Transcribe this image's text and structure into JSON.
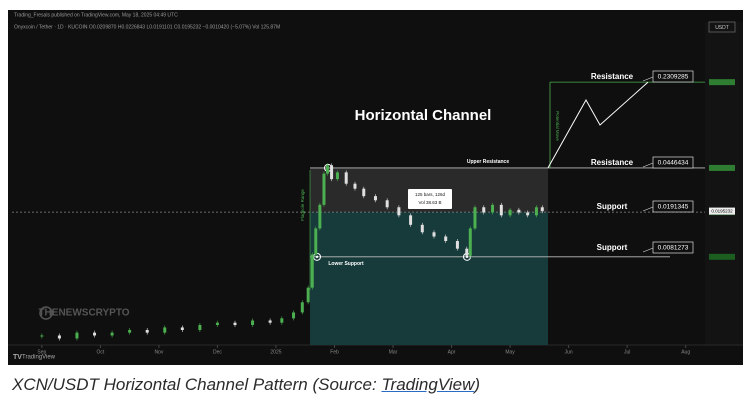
{
  "chart_data": {
    "type": "candlestick",
    "title": "Horizontal Channel",
    "publisher": "Trading_Fresals published on TradingView.com, May 18, 2025 04:49 UTC",
    "symbol_line": "Onyxcoin / Tether · 1D · KUCOIN  O0.0209870  H0.0226843  L0.0191101  C0.0195232  −0.0010420 (−5.07%)  Vol 125.87M",
    "currency": "USDT",
    "current_price": "0.0195232",
    "watermark": "THENEWSCRYPTO",
    "footer": "TradingView",
    "annotations": {
      "upper": "Upper Resistance",
      "lower": "Lower Support",
      "range_bars": "125 bars, 126d",
      "range_vol": "Vol 38.63 B",
      "flagpole": "Flagpole Range",
      "move": "Potential Move"
    },
    "levels": [
      {
        "label": "Resistance",
        "value": 0.2309285
      },
      {
        "label": "Resistance",
        "value": 0.0446434
      },
      {
        "label": "Support",
        "value": 0.0191345
      },
      {
        "label": "Support",
        "value": 0.0081273
      }
    ],
    "x": [
      0.0,
      0.3,
      0.6,
      0.9,
      1.2,
      1.5,
      1.8,
      2.1,
      2.4,
      2.7,
      3.0,
      3.3,
      3.6,
      3.9,
      4.1,
      4.3,
      4.45,
      4.55,
      4.62,
      4.68,
      4.75,
      4.82,
      4.88,
      4.95,
      5.05,
      5.2,
      5.35,
      5.5,
      5.7,
      5.9,
      6.1,
      6.3,
      6.5,
      6.7,
      6.9,
      7.1,
      7.26,
      7.32,
      7.4,
      7.55,
      7.7,
      7.85,
      8.0,
      8.15,
      8.3,
      8.45,
      8.55
    ],
    "values": [
      0.0018,
      0.0017,
      0.0019,
      0.0018,
      0.0019,
      0.002,
      0.0019,
      0.0021,
      0.002,
      0.0022,
      0.0023,
      0.0022,
      0.0024,
      0.0023,
      0.0025,
      0.0028,
      0.0034,
      0.0045,
      0.0085,
      0.014,
      0.022,
      0.04,
      0.047,
      0.036,
      0.041,
      0.033,
      0.03,
      0.026,
      0.024,
      0.021,
      0.018,
      0.015,
      0.013,
      0.012,
      0.011,
      0.0095,
      0.0083,
      0.014,
      0.021,
      0.019,
      0.022,
      0.018,
      0.02,
      0.019,
      0.018,
      0.021,
      0.0195
    ],
    "color_up": "#4caf50",
    "color_down": "#e0e0e0",
    "log_scale": true,
    "xlim": [
      -0.51,
      11.33
    ],
    "ylim": [
      0.0015,
      0.57
    ],
    "xticks": [
      {
        "value": 0,
        "label": "Sep"
      },
      {
        "value": 1,
        "label": "Oct"
      },
      {
        "value": 2,
        "label": "Nov"
      },
      {
        "value": 3,
        "label": "Dec"
      },
      {
        "value": 4,
        "label": "2025"
      },
      {
        "value": 5,
        "label": "Feb"
      },
      {
        "value": 6,
        "label": "Mar"
      },
      {
        "value": 7,
        "label": "Apr"
      },
      {
        "value": 8,
        "label": "May"
      },
      {
        "value": 9,
        "label": "Jun"
      },
      {
        "value": 10,
        "label": "Jul"
      },
      {
        "value": 11,
        "label": "Aug"
      }
    ]
  },
  "caption": {
    "text": "XCN/USDT Horizontal Channel Pattern (Source: ",
    "link": "TradingView",
    "end": ")"
  }
}
